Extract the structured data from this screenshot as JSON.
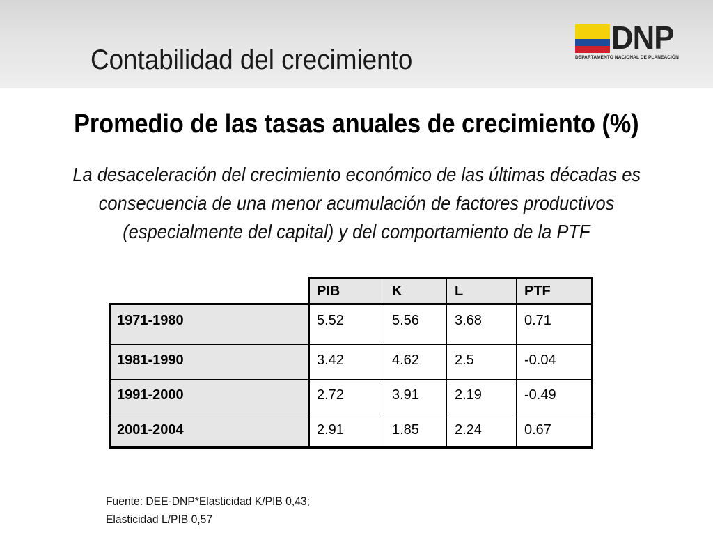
{
  "slide": {
    "title": "Contabilidad del crecimiento"
  },
  "logo": {
    "word": "DNP",
    "subtitle": "DEPARTAMENTO NACIONAL DE PLANEACIÓN",
    "flag_colors": [
      "#f5d10a",
      "#1d4c9a",
      "#d0202a"
    ]
  },
  "subtitle": "Promedio de las tasas anuales de crecimiento (%)",
  "description": {
    "lines": [
      "La desaceleración del crecimiento económico de las últimas décadas es",
      "consecuencia de  una menor acumulación de factores productivos",
      "(especialmente del capital)  y del comportamiento de la PTF"
    ]
  },
  "table": {
    "columns": [
      "PIB",
      "K",
      "L",
      "PTF"
    ],
    "rows": [
      {
        "label": "1971-1980",
        "values": [
          "5.52",
          "5.56",
          "3.68",
          "0.71"
        ]
      },
      {
        "label": "1981-1990",
        "values": [
          "3.42",
          "4.62",
          "2.5",
          "-0.04"
        ]
      },
      {
        "label": "1991-2000",
        "values": [
          "2.72",
          "3.91",
          "2.19",
          "-0.49"
        ]
      },
      {
        "label": "2001-2004",
        "values": [
          "2.91",
          "1.85",
          "2.24",
          "0.67"
        ]
      }
    ]
  },
  "source": {
    "lines": [
      "Fuente: DEE-DNP*Elasticidad K/PIB 0,43;",
      "Elasticidad L/PIB 0,57"
    ]
  }
}
